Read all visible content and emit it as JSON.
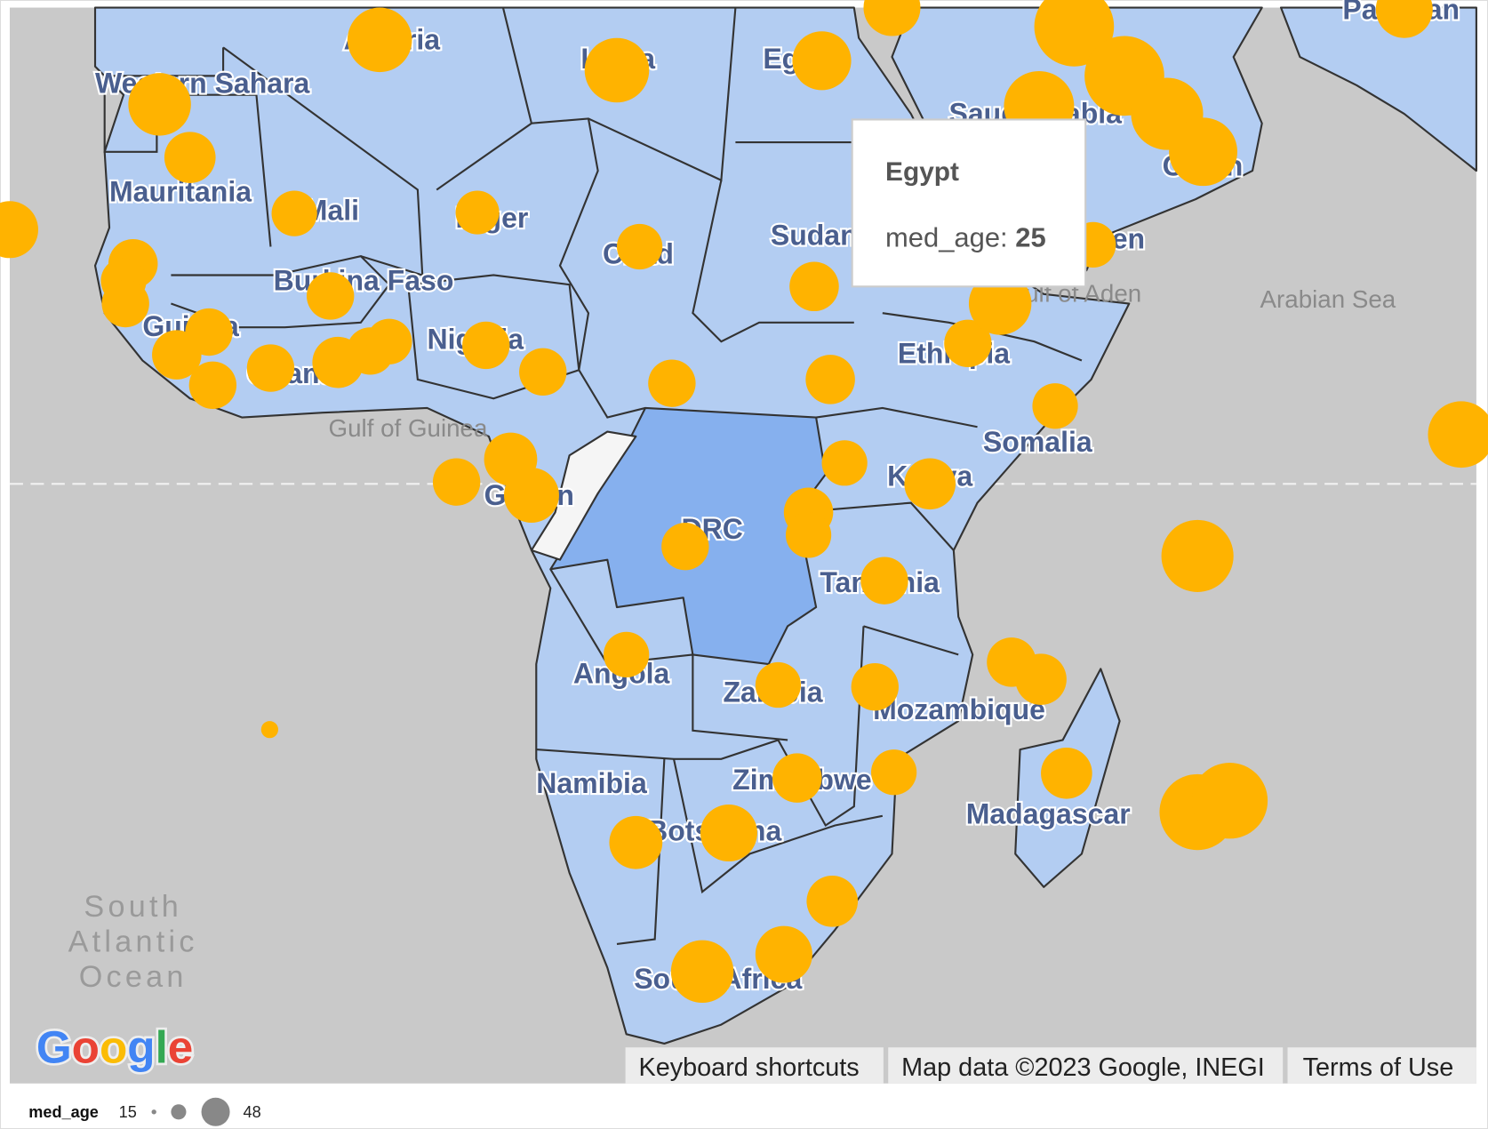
{
  "map": {
    "colors": {
      "water": "#c9c9c9",
      "land": "#b3cdf2",
      "highlight": "#86b0ee",
      "nodata": "#f5f5f5",
      "marker": "#ffb300",
      "border": "#333333"
    },
    "labels": [
      "Western Sahara",
      "Mauritania",
      "Mali",
      "Niger",
      "Chad",
      "Sudan",
      "Egypt",
      "Libya",
      "Algeria",
      "Burkina Faso",
      "Guinea",
      "Ghana",
      "Nigeria",
      "Gabon",
      "DRC",
      "Kenya",
      "Ethiopia",
      "Somalia",
      "Tanzania",
      "Angola",
      "Zambia",
      "Mozambique",
      "Zimbabwe",
      "Namibia",
      "Botswana",
      "South Africa",
      "Madagascar",
      "Saudi Arabia",
      "Oman",
      "Yemen",
      "Pakistan"
    ],
    "sea_labels": [
      "Gulf of Guinea",
      "Gulf of Aden",
      "Arabian Sea"
    ],
    "ocean_label": [
      "South",
      "Atlantic",
      "Ocean"
    ]
  },
  "tooltip": {
    "country": "Egypt",
    "metric_label": "med_age:",
    "metric_value": "25"
  },
  "footer": {
    "logo": "Google",
    "keyboard_shortcuts": "Keyboard shortcuts",
    "map_data": "Map data ©2023 Google, INEGI",
    "terms": "Terms of Use"
  },
  "legend": {
    "title": "med_age",
    "min": "15",
    "max": "48"
  }
}
